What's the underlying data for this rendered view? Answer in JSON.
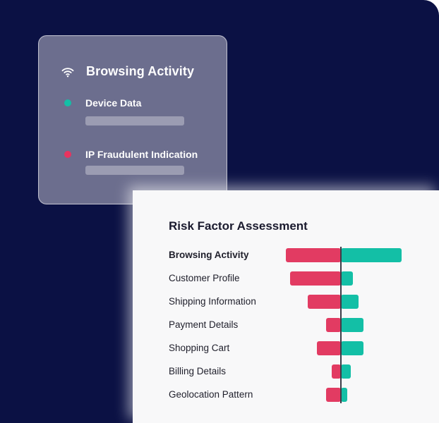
{
  "overlay_card": {
    "title": "Browsing Activity",
    "icon": "wifi-icon",
    "signals": [
      {
        "label": "Device Data",
        "color": "#13bfa6"
      },
      {
        "label": "IP Fraudulent Indication",
        "color": "#e8335f"
      }
    ]
  },
  "colors": {
    "background": "#0b1144",
    "negative": "#e23b62",
    "positive": "#13bfa6",
    "axis": "#3d3d48"
  },
  "chart_data": {
    "type": "bar",
    "orientation": "horizontal-diverging",
    "title": "Risk Factor Assessment",
    "categories": [
      "Browsing Activity",
      "Customer Profile",
      "Shipping Information",
      "Payment Details",
      "Shopping Cart",
      "Billing Details",
      "Geolocation Pattern"
    ],
    "highlighted_category": "Browsing Activity",
    "series": [
      {
        "values": [
          -78,
          -72,
          -47,
          -21,
          -34,
          -13,
          -21
        ]
      },
      {
        "values": [
          86,
          17,
          25,
          32,
          32,
          14,
          9
        ]
      }
    ],
    "xlim": [
      -100,
      100
    ],
    "grid": false
  }
}
